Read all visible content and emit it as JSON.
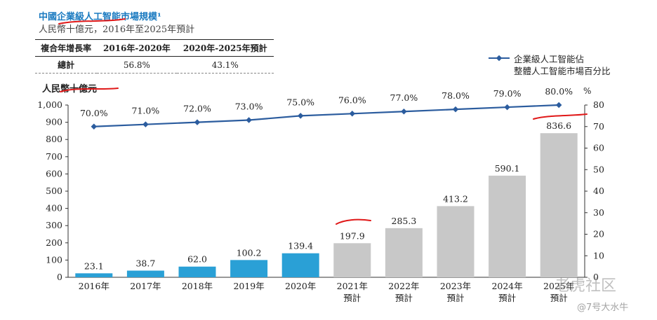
{
  "header": {
    "title": "中國企業級人工智能市場規模¹",
    "subtitle": "人民幣十億元，2016年至2025年預計"
  },
  "cagr_table": {
    "headers": [
      "複合年增長率",
      "2016年-2020年",
      "2020年-2025年預計"
    ],
    "row": [
      "總計",
      "56.8%",
      "43.1%"
    ]
  },
  "unit_label": "人民幣十億元",
  "legend": {
    "line1": "企業級人工智能佔",
    "line2": "整體人工智能市場百分比"
  },
  "watermark": {
    "text1": "老虎社区",
    "text2": "@7号大水牛"
  },
  "chart_data": {
    "type": "bar",
    "categories": [
      "2016年",
      "2017年",
      "2018年",
      "2019年",
      "2020年",
      "2021年",
      "2022年",
      "2023年",
      "2024年",
      "2025年"
    ],
    "category_sublabels": [
      "",
      "",
      "",
      "",
      "",
      "預計",
      "預計",
      "預計",
      "預計",
      "預計"
    ],
    "series": [
      {
        "name": "人民幣十億元",
        "type": "bar",
        "axis": "left",
        "values": [
          23.1,
          38.7,
          62.0,
          100.2,
          139.4,
          197.9,
          285.3,
          413.2,
          590.1,
          836.6
        ],
        "labels": [
          "23.1",
          "38.7",
          "62.0",
          "100.2",
          "139.4",
          "197.9",
          "285.3",
          "413.2",
          "590.1",
          "836.6"
        ],
        "colors": [
          "#2aa0d6",
          "#2aa0d6",
          "#2aa0d6",
          "#2aa0d6",
          "#2aa0d6",
          "#c8c8c8",
          "#c8c8c8",
          "#c8c8c8",
          "#c8c8c8",
          "#c8c8c8"
        ]
      },
      {
        "name": "企業級人工智能佔整體人工智能市場百分比",
        "type": "line",
        "axis": "right",
        "values": [
          70.0,
          71.0,
          72.0,
          73.0,
          75.0,
          76.0,
          77.0,
          78.0,
          79.0,
          80.0
        ],
        "labels": [
          "70.0%",
          "71.0%",
          "72.0%",
          "73.0%",
          "75.0%",
          "76.0%",
          "77.0%",
          "78.0%",
          "79.0%",
          "80.0%"
        ],
        "color": "#2b5c9e"
      }
    ],
    "y_left": {
      "ylim": [
        0,
        1000
      ],
      "ticks": [
        0,
        100,
        200,
        300,
        400,
        500,
        600,
        700,
        800,
        900,
        1000
      ],
      "tick_labels": [
        "0",
        "100",
        "200",
        "300",
        "400",
        "500",
        "600",
        "700",
        "800",
        "900",
        "1,000"
      ]
    },
    "y_right": {
      "ylim": [
        0,
        80
      ],
      "ticks": [
        0,
        10,
        20,
        30,
        40,
        50,
        60,
        70,
        80
      ],
      "tick_labels": [
        "0",
        "10",
        "20",
        "30",
        "40",
        "50",
        "60",
        "70",
        "80"
      ],
      "unit": "%"
    },
    "grid": false
  }
}
